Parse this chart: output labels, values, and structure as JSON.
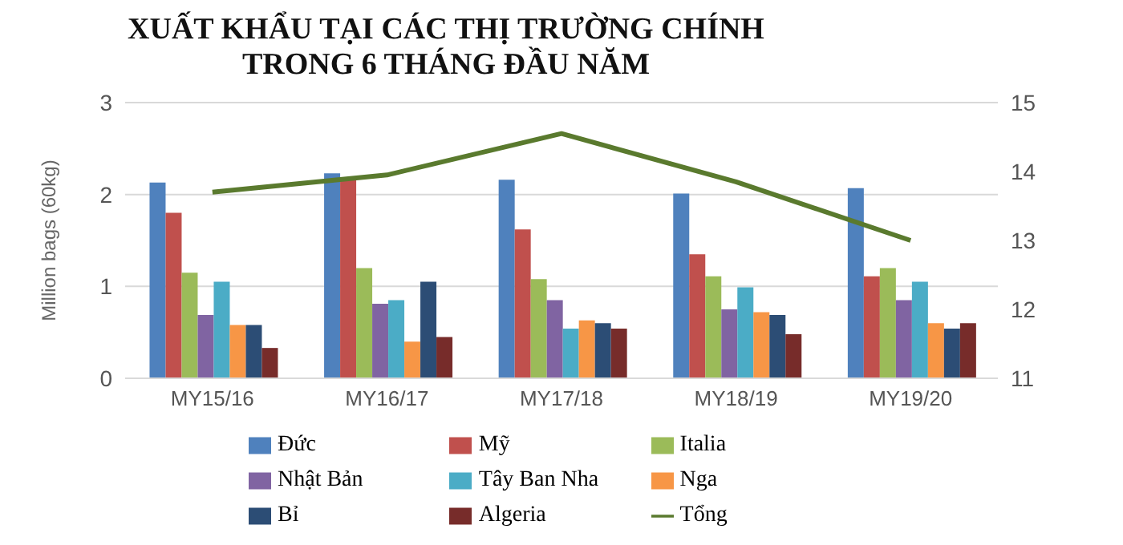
{
  "chart_data": {
    "type": "bar",
    "title": "XUẤT KHẨU TẠI CÁC THỊ TRƯỜNG CHÍNH\nTRONG 6 THÁNG ĐẦU NĂM",
    "ylabel": "Million bags (60kg)",
    "categories": [
      "MY15/16",
      "MY16/17",
      "MY17/18",
      "MY18/19",
      "MY19/20"
    ],
    "series": [
      {
        "name": "Đức",
        "color": "#4f81bd",
        "values": [
          2.13,
          2.23,
          2.16,
          2.01,
          2.07
        ]
      },
      {
        "name": "Mỹ",
        "color": "#c0504d",
        "values": [
          1.8,
          2.18,
          1.62,
          1.35,
          1.11
        ]
      },
      {
        "name": "Italia",
        "color": "#9bbb59",
        "values": [
          1.15,
          1.2,
          1.08,
          1.11,
          1.2
        ]
      },
      {
        "name": "Nhật Bản",
        "color": "#8064a2",
        "values": [
          0.69,
          0.81,
          0.85,
          0.75,
          0.85
        ]
      },
      {
        "name": "Tây Ban Nha",
        "color": "#4bacc6",
        "values": [
          1.05,
          0.85,
          0.54,
          0.99,
          1.05
        ]
      },
      {
        "name": "Nga",
        "color": "#f79646",
        "values": [
          0.58,
          0.4,
          0.63,
          0.72,
          0.6
        ]
      },
      {
        "name": "Bỉ",
        "color": "#2c4d75",
        "values": [
          0.58,
          1.05,
          0.6,
          0.69,
          0.54
        ]
      },
      {
        "name": "Algeria",
        "color": "#772c2a",
        "values": [
          0.33,
          0.45,
          0.54,
          0.48,
          0.6
        ]
      },
      {
        "name": "Tổng",
        "type": "line",
        "axis": "y2",
        "color": "#5a7a2e",
        "values": [
          13.7,
          13.95,
          14.55,
          13.85,
          13.0
        ]
      }
    ],
    "ylim": [
      0,
      3
    ],
    "yticks": [
      0,
      1,
      2,
      3
    ],
    "y2lim": [
      11,
      15
    ],
    "y2ticks": [
      11,
      12,
      13,
      14,
      15
    ],
    "grid": "y",
    "legend": "bottom",
    "marker": "none",
    "line_style": "solid"
  }
}
